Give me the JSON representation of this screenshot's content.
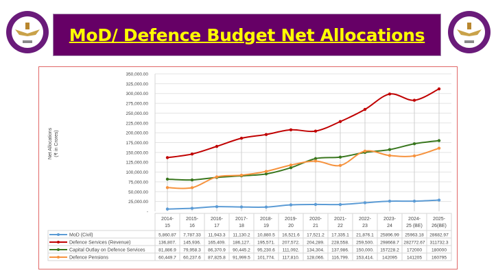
{
  "header": {
    "title": "MoD/ Defence Budget Net Allocations",
    "colors": {
      "banner": "#660066",
      "title": "#ffff00",
      "frame": "#e06666"
    }
  },
  "emblems": {
    "left": "emblem-icon",
    "right": "emblem-icon"
  },
  "chart_data": {
    "type": "line",
    "smooth": true,
    "ylabel": "Net Allocations",
    "ylabel_unit": "(₹ in Crores)",
    "ylim": [
      0,
      350000
    ],
    "yticks": [
      "-",
      "25,000.00",
      "50,000.00",
      "75,000.00",
      "100,000.00",
      "125,000.00",
      "150,000.00",
      "175,000.00",
      "200,000.00",
      "225,000.00",
      "250,000.00",
      "275,000.00",
      "300,000.00",
      "325,000.00",
      "350,000.00"
    ],
    "grid": true,
    "legend": "data-table",
    "categories": [
      [
        "2014-",
        "15"
      ],
      [
        "2015-",
        "16"
      ],
      [
        "2016-",
        "17"
      ],
      [
        "2017-",
        "18"
      ],
      [
        "2018-",
        "19"
      ],
      [
        "2019-",
        "20"
      ],
      [
        "2020-",
        "21"
      ],
      [
        "2021-",
        "22"
      ],
      [
        "2022-",
        "23"
      ],
      [
        "2023-",
        "24"
      ],
      [
        "2024-",
        "25 (BE)"
      ],
      [
        "2025-",
        "26(BE)"
      ]
    ],
    "series": [
      {
        "name": "MoD (Civil)",
        "color": "#5b9bd5",
        "values": [
          5860.87,
          7787.33,
          11943.3,
          11130.2,
          10880.5,
          16521.6,
          17521.2,
          17335.1,
          21876.1,
          25896.99,
          25963.18,
          28682.97
        ],
        "labels": [
          "5,860.87",
          "7,787.33",
          "11,943.3",
          "11,130.2",
          "10,880.5",
          "16,521.6",
          "17,521.2",
          "17,335.1",
          "21,876.1",
          "25896.99",
          "25963.18",
          "28682.97"
        ]
      },
      {
        "name": "Defence Services (Revenue)",
        "color": "#c00000",
        "values": [
          136807,
          145936,
          165409,
          186127,
          195571,
          207572,
          204289,
          228558,
          259500,
          298668.7,
          282772.67,
          311732.3
        ],
        "labels": [
          "136,807.",
          "145,936.",
          "165,409.",
          "186,127.",
          "195,571.",
          "207,572.",
          "204,289.",
          "228,558.",
          "259,500.",
          "298668.7",
          "282772.67",
          "311732.3"
        ]
      },
      {
        "name": "Capital Outlay on Defence Services",
        "color": "#38761d",
        "values": [
          81886.9,
          79958.3,
          86370.9,
          90445.2,
          95230.6,
          111092,
          134304,
          137986,
          150000,
          157228.2,
          172000,
          180000
        ],
        "labels": [
          "81,886.9",
          "79,958.3",
          "86,370.9",
          "90,445.2",
          "95,230.6",
          "111,092.",
          "134,304.",
          "137,986.",
          "150,000.",
          "157228.2",
          "172000",
          "180000"
        ]
      },
      {
        "name": "Defence Pensions",
        "color": "#f6923d",
        "values": [
          60449.7,
          60237.6,
          87825.8,
          91999.5,
          101774,
          117810,
          128066,
          116799,
          153414,
          142095,
          141205,
          160795
        ],
        "labels": [
          "60,449.7",
          "60,237.6",
          "87,825.8",
          "91,999.5",
          "101,774.",
          "117,810.",
          "128,066.",
          "116,799.",
          "153,414.",
          "142095",
          "141205",
          "160795"
        ]
      }
    ]
  }
}
